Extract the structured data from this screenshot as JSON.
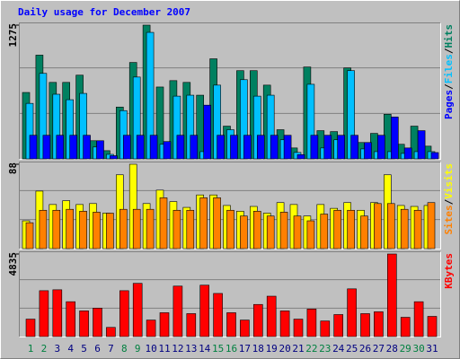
{
  "chart_data": [
    {
      "type": "bar",
      "title": "Daily usage for December 2007",
      "title_color": "#0000ff",
      "ylim": [
        0,
        1275
      ],
      "yticks": [
        1275
      ],
      "legend_separator": "/",
      "series": [
        {
          "name": "Hits",
          "color": "#008060",
          "values": [
            633,
            989,
            729,
            729,
            798,
            173,
            78,
            494,
            919,
            1275,
            685,
            746,
            729,
            607,
            954,
            312,
            841,
            841,
            703,
            278,
            104,
            876,
            269,
            260,
            867,
            156,
            243,
            425,
            139,
            312,
            121
          ]
        },
        {
          "name": "Files",
          "color": "#00c0ff",
          "values": [
            529,
            815,
            616,
            564,
            624,
            113,
            43,
            460,
            780,
            1206,
            139,
            598,
            607,
            69,
            703,
            278,
            755,
            598,
            607,
            182,
            61,
            711,
            104,
            182,
            841,
            95,
            69,
            69,
            52,
            69,
            69
          ]
        },
        {
          "name": "Pages",
          "color": "#0000ff",
          "values": [
            225,
            225,
            225,
            225,
            225,
            173,
            30,
            225,
            225,
            225,
            165,
            225,
            225,
            512,
            225,
            225,
            225,
            225,
            225,
            225,
            40,
            225,
            225,
            225,
            225,
            156,
            225,
            399,
            104,
            269,
            60
          ]
        }
      ]
    },
    {
      "type": "bar",
      "ylim": [
        0,
        88
      ],
      "yticks": [
        88
      ],
      "legend_separator": "/",
      "series": [
        {
          "name": "Visits",
          "color": "#ffff00",
          "values": [
            29,
            60,
            46,
            50,
            46,
            47,
            37,
            77,
            88,
            47,
            61,
            49,
            43,
            56,
            56,
            45,
            39,
            44,
            37,
            48,
            46,
            34,
            46,
            42,
            48,
            40,
            48,
            77,
            45,
            44,
            45
          ]
        },
        {
          "name": "Sites",
          "color": "#ff8000",
          "values": [
            27,
            40,
            40,
            41,
            39,
            38,
            37,
            41,
            41,
            41,
            53,
            40,
            40,
            53,
            53,
            40,
            34,
            39,
            34,
            38,
            34,
            29,
            36,
            40,
            40,
            34,
            47,
            47,
            41,
            40,
            48
          ]
        }
      ]
    },
    {
      "type": "bar",
      "ylim": [
        0,
        4835
      ],
      "yticks": [
        4835
      ],
      "categories": [
        "1",
        "2",
        "3",
        "4",
        "5",
        "6",
        "7",
        "8",
        "9",
        "10",
        "11",
        "12",
        "13",
        "14",
        "15",
        "16",
        "17",
        "18",
        "19",
        "20",
        "21",
        "22",
        "23",
        "24",
        "25",
        "26",
        "27",
        "28",
        "29",
        "30",
        "31"
      ],
      "category_colors": [
        "#008040",
        "#008040",
        "#000080",
        "#000080",
        "#000080",
        "#000080",
        "#000080",
        "#008040",
        "#008040",
        "#000080",
        "#000080",
        "#000080",
        "#000080",
        "#000080",
        "#008040",
        "#008040",
        "#000080",
        "#000080",
        "#000080",
        "#000080",
        "#000080",
        "#008040",
        "#008040",
        "#000080",
        "#000080",
        "#000080",
        "#000080",
        "#000080",
        "#008040",
        "#008040",
        "#000080"
      ],
      "series": [
        {
          "name": "KBytes",
          "color": "#ff0000",
          "values": [
            1021,
            2686,
            2740,
            2041,
            1504,
            1665,
            537,
            2686,
            3116,
            967,
            1397,
            2955,
            1343,
            3009,
            2525,
            1397,
            967,
            1880,
            2364,
            1504,
            1021,
            1612,
            913,
            1289,
            2794,
            1343,
            1451,
            4835,
            1128,
            2041,
            1182
          ]
        }
      ]
    }
  ]
}
